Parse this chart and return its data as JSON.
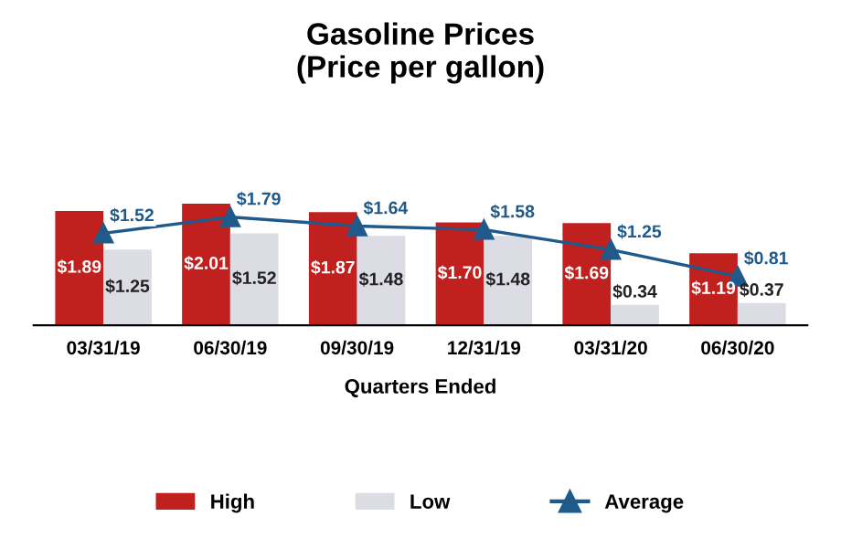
{
  "chart_data": {
    "type": "bar",
    "title": "Gasoline Prices\n(Price per gallon)",
    "xlabel": "Quarters Ended",
    "categories": [
      "03/31/19",
      "06/30/19",
      "09/30/19",
      "12/31/19",
      "03/31/20",
      "06/30/20"
    ],
    "series": [
      {
        "name": "High",
        "color": "#c0211f",
        "values": [
          1.89,
          2.01,
          1.87,
          1.7,
          1.69,
          1.19
        ],
        "value_labels": [
          "$1.89",
          "$2.01",
          "$1.87",
          "$1.70",
          "$1.69",
          "$1.19"
        ]
      },
      {
        "name": "Low",
        "color": "#dcdde4",
        "values": [
          1.25,
          1.52,
          1.48,
          1.48,
          0.34,
          0.37
        ],
        "value_labels": [
          "$1.25",
          "$1.52",
          "$1.48",
          "$1.48",
          "$0.34",
          "$0.37"
        ]
      },
      {
        "name": "Average",
        "type": "line",
        "color": "#1f5a8b",
        "values": [
          1.52,
          1.79,
          1.64,
          1.58,
          1.25,
          0.81
        ],
        "value_labels": [
          "$1.52",
          "$1.79",
          "$1.64",
          "$1.58",
          "$1.25",
          "$0.81"
        ]
      }
    ],
    "marker": "triangle",
    "line_style": "solid",
    "grid": false,
    "legend": "bottom"
  }
}
